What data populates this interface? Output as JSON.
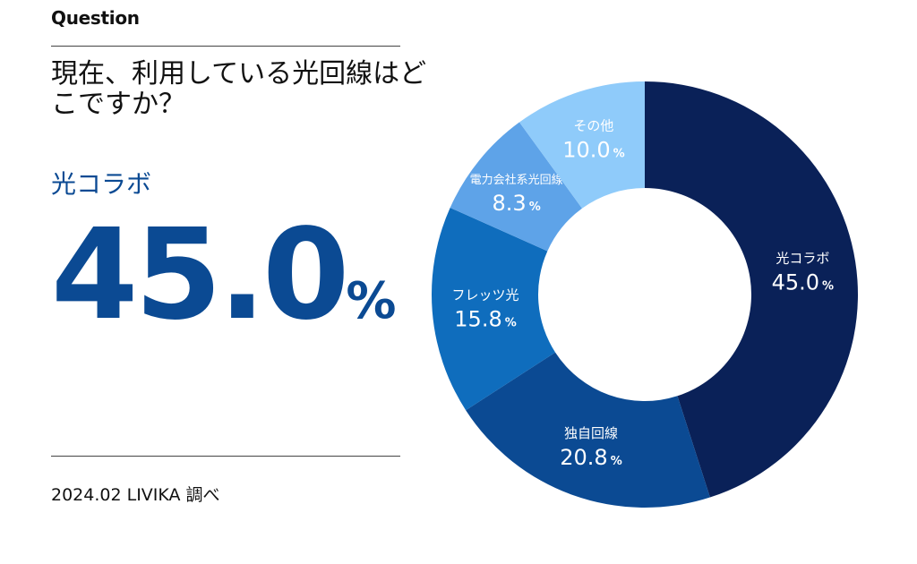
{
  "header": {
    "label": "Question"
  },
  "question": {
    "text": "現在、利用している光回線はどこですか？"
  },
  "highlight": {
    "name": "光コラボ",
    "value": "45.0",
    "unit": "%"
  },
  "source": {
    "text": "2024.02 LIVIKA 調べ"
  },
  "chart_data": {
    "type": "pie",
    "subtype": "donut",
    "unit": "%",
    "slices": [
      {
        "label": "光コラボ",
        "value": 45.0,
        "color": "#0a2158"
      },
      {
        "label": "独自回線",
        "value": 20.8,
        "color": "#0b4a93"
      },
      {
        "label": "フレッツ光",
        "value": 15.8,
        "color": "#0f6dbd"
      },
      {
        "label": "電力会社系光回線",
        "value": 8.3,
        "color": "#5ea3e8"
      },
      {
        "label": "その他",
        "value": 10.0,
        "color": "#8fcbfa"
      }
    ]
  }
}
